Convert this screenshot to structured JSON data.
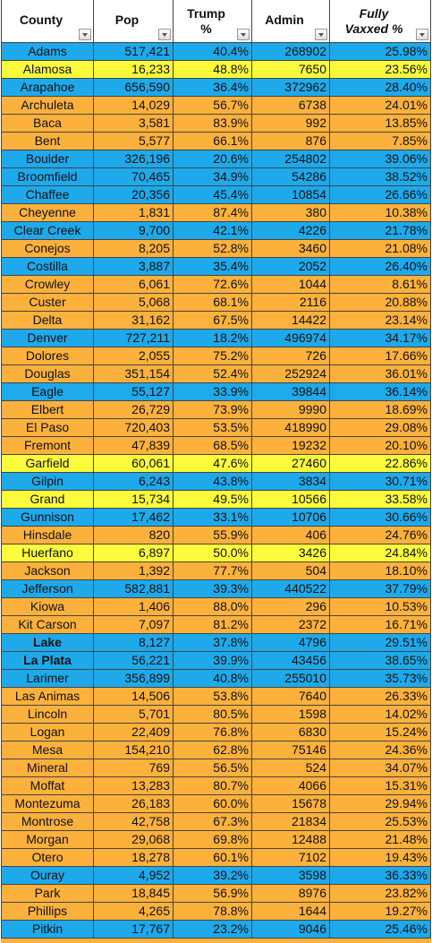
{
  "table": {
    "headers": [
      [
        "County"
      ],
      [
        "Pop"
      ],
      [
        "Trump",
        "%"
      ],
      [
        "Admin"
      ],
      [
        "Fully",
        "Vaxxed %"
      ]
    ],
    "rows": [
      {
        "cells": [
          "Adams",
          "517,421",
          "40.4%",
          "268902",
          "25.98%"
        ],
        "color": "#1ea9ea"
      },
      {
        "cells": [
          "Alamosa",
          "16,233",
          "48.8%",
          "7650",
          "23.56%"
        ],
        "color": "#fbfb3c"
      },
      {
        "cells": [
          "Arapahoe",
          "656,590",
          "36.4%",
          "372962",
          "28.40%"
        ],
        "color": "#1ea9ea"
      },
      {
        "cells": [
          "Archuleta",
          "14,029",
          "56.7%",
          "6738",
          "24.01%"
        ],
        "color": "#fbb13c"
      },
      {
        "cells": [
          "Baca",
          "3,581",
          "83.9%",
          "992",
          "13.85%"
        ],
        "color": "#fbb13c"
      },
      {
        "cells": [
          "Bent",
          "5,577",
          "66.1%",
          "876",
          "7.85%"
        ],
        "color": "#fbb13c"
      },
      {
        "cells": [
          "Boulder",
          "326,196",
          "20.6%",
          "254802",
          "39.06%"
        ],
        "color": "#1ea9ea"
      },
      {
        "cells": [
          "Broomfield",
          "70,465",
          "34.9%",
          "54286",
          "38.52%"
        ],
        "color": "#1ea9ea"
      },
      {
        "cells": [
          "Chaffee",
          "20,356",
          "45.4%",
          "10854",
          "26.66%"
        ],
        "color": "#1ea9ea"
      },
      {
        "cells": [
          "Cheyenne",
          "1,831",
          "87.4%",
          "380",
          "10.38%"
        ],
        "color": "#fbb13c"
      },
      {
        "cells": [
          "Clear Creek",
          "9,700",
          "42.1%",
          "4226",
          "21.78%"
        ],
        "color": "#1ea9ea"
      },
      {
        "cells": [
          "Conejos",
          "8,205",
          "52.8%",
          "3460",
          "21.08%"
        ],
        "color": "#fbb13c"
      },
      {
        "cells": [
          "Costilla",
          "3,887",
          "35.4%",
          "2052",
          "26.40%"
        ],
        "color": "#1ea9ea"
      },
      {
        "cells": [
          "Crowley",
          "6,061",
          "72.6%",
          "1044",
          "8.61%"
        ],
        "color": "#fbb13c"
      },
      {
        "cells": [
          "Custer",
          "5,068",
          "68.1%",
          "2116",
          "20.88%"
        ],
        "color": "#fbb13c"
      },
      {
        "cells": [
          "Delta",
          "31,162",
          "67.5%",
          "14422",
          "23.14%"
        ],
        "color": "#fbb13c"
      },
      {
        "cells": [
          "Denver",
          "727,211",
          "18.2%",
          "496974",
          "34.17%"
        ],
        "color": "#1ea9ea"
      },
      {
        "cells": [
          "Dolores",
          "2,055",
          "75.2%",
          "726",
          "17.66%"
        ],
        "color": "#fbb13c"
      },
      {
        "cells": [
          "Douglas",
          "351,154",
          "52.4%",
          "252924",
          "36.01%"
        ],
        "color": "#fbb13c"
      },
      {
        "cells": [
          "Eagle",
          "55,127",
          "33.9%",
          "39844",
          "36.14%"
        ],
        "color": "#1ea9ea"
      },
      {
        "cells": [
          "Elbert",
          "26,729",
          "73.9%",
          "9990",
          "18.69%"
        ],
        "color": "#fbb13c"
      },
      {
        "cells": [
          "El Paso",
          "720,403",
          "53.5%",
          "418990",
          "29.08%"
        ],
        "color": "#fbb13c"
      },
      {
        "cells": [
          "Fremont",
          "47,839",
          "68.5%",
          "19232",
          "20.10%"
        ],
        "color": "#fbb13c"
      },
      {
        "cells": [
          "Garfield",
          "60,061",
          "47.6%",
          "27460",
          "22.86%"
        ],
        "color": "#fbfb3c"
      },
      {
        "cells": [
          "Gilpin",
          "6,243",
          "43.8%",
          "3834",
          "30.71%"
        ],
        "color": "#1ea9ea"
      },
      {
        "cells": [
          "Grand",
          "15,734",
          "49.5%",
          "10566",
          "33.58%"
        ],
        "color": "#fbfb3c"
      },
      {
        "cells": [
          "Gunnison",
          "17,462",
          "33.1%",
          "10706",
          "30.66%"
        ],
        "color": "#1ea9ea"
      },
      {
        "cells": [
          "Hinsdale",
          "820",
          "55.9%",
          "406",
          "24.76%"
        ],
        "color": "#fbb13c"
      },
      {
        "cells": [
          "Huerfano",
          "6,897",
          "50.0%",
          "3426",
          "24.84%"
        ],
        "color": "#fbfb3c"
      },
      {
        "cells": [
          "Jackson",
          "1,392",
          "77.7%",
          "504",
          "18.10%"
        ],
        "color": "#fbb13c"
      },
      {
        "cells": [
          "Jefferson",
          "582,881",
          "39.3%",
          "440522",
          "37.79%"
        ],
        "color": "#1ea9ea"
      },
      {
        "cells": [
          "Kiowa",
          "1,406",
          "88.0%",
          "296",
          "10.53%"
        ],
        "color": "#fbb13c"
      },
      {
        "cells": [
          "Kit Carson",
          "7,097",
          "81.2%",
          "2372",
          "16.71%"
        ],
        "color": "#fbb13c"
      },
      {
        "cells": [
          "Lake",
          "8,127",
          "37.8%",
          "4796",
          "29.51%"
        ],
        "color": "#1ea9ea",
        "bold": true
      },
      {
        "cells": [
          "La Plata",
          "56,221",
          "39.9%",
          "43456",
          "38.65%"
        ],
        "color": "#1ea9ea",
        "bold": true
      },
      {
        "cells": [
          "Larimer",
          "356,899",
          "40.8%",
          "255010",
          "35.73%"
        ],
        "color": "#1ea9ea"
      },
      {
        "cells": [
          "Las Animas",
          "14,506",
          "53.8%",
          "7640",
          "26.33%"
        ],
        "color": "#fbb13c"
      },
      {
        "cells": [
          "Lincoln",
          "5,701",
          "80.5%",
          "1598",
          "14.02%"
        ],
        "color": "#fbb13c"
      },
      {
        "cells": [
          "Logan",
          "22,409",
          "76.8%",
          "6830",
          "15.24%"
        ],
        "color": "#fbb13c"
      },
      {
        "cells": [
          "Mesa",
          "154,210",
          "62.8%",
          "75146",
          "24.36%"
        ],
        "color": "#fbb13c"
      },
      {
        "cells": [
          "Mineral",
          "769",
          "56.5%",
          "524",
          "34.07%"
        ],
        "color": "#fbb13c"
      },
      {
        "cells": [
          "Moffat",
          "13,283",
          "80.7%",
          "4066",
          "15.31%"
        ],
        "color": "#fbb13c"
      },
      {
        "cells": [
          "Montezuma",
          "26,183",
          "60.0%",
          "15678",
          "29.94%"
        ],
        "color": "#fbb13c"
      },
      {
        "cells": [
          "Montrose",
          "42,758",
          "67.3%",
          "21834",
          "25.53%"
        ],
        "color": "#fbb13c"
      },
      {
        "cells": [
          "Morgan",
          "29,068",
          "69.8%",
          "12488",
          "21.48%"
        ],
        "color": "#fbb13c"
      },
      {
        "cells": [
          "Otero",
          "18,278",
          "60.1%",
          "7102",
          "19.43%"
        ],
        "color": "#fbb13c"
      },
      {
        "cells": [
          "Ouray",
          "4,952",
          "39.2%",
          "3598",
          "36.33%"
        ],
        "color": "#1ea9ea"
      },
      {
        "cells": [
          "Park",
          "18,845",
          "56.9%",
          "8976",
          "23.82%"
        ],
        "color": "#fbb13c"
      },
      {
        "cells": [
          "Phillips",
          "4,265",
          "78.8%",
          "1644",
          "19.27%"
        ],
        "color": "#fbb13c"
      },
      {
        "cells": [
          "Pitkin",
          "17,767",
          "23.2%",
          "9046",
          "25.46%"
        ],
        "color": "#1ea9ea"
      }
    ]
  }
}
